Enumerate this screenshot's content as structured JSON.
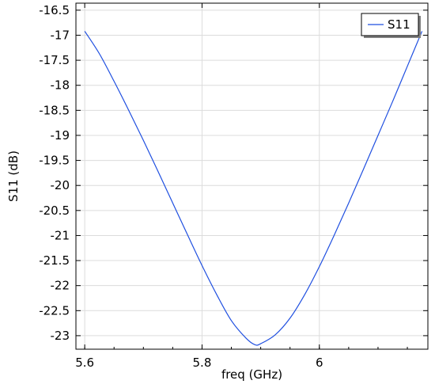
{
  "chart_data": {
    "type": "line",
    "title": "",
    "xlabel": "freq (GHz)",
    "ylabel": "S11 (dB)",
    "xlim": [
      5.585,
      6.185
    ],
    "ylim": [
      -23.27,
      -16.36
    ],
    "xticks": [
      5.6,
      5.8,
      6
    ],
    "xtick_labels": [
      "5.6",
      "5.8",
      "6"
    ],
    "yticks": [
      -16.5,
      -17,
      -17.5,
      -18,
      -18.5,
      -19,
      -19.5,
      -20,
      -20.5,
      -21,
      -21.5,
      -22,
      -22.5,
      -23
    ],
    "ytick_labels": [
      "-16.5",
      "-17",
      "-17.5",
      "-18",
      "-18.5",
      "-19",
      "-19.5",
      "-20",
      "-20.5",
      "-21",
      "-21.5",
      "-22",
      "-22.5",
      "-23"
    ],
    "grid": true,
    "legend_position": "top-right",
    "series": [
      {
        "name": "S11",
        "color": "#1f4fe0",
        "x": [
          5.6,
          5.625,
          5.65,
          5.675,
          5.7,
          5.725,
          5.75,
          5.775,
          5.8,
          5.825,
          5.85,
          5.875,
          5.89,
          5.9,
          5.925,
          5.95,
          5.975,
          6.0,
          6.025,
          6.05,
          6.075,
          6.1,
          6.125,
          6.15,
          6.175
        ],
        "y": [
          -16.92,
          -17.37,
          -17.92,
          -18.5,
          -19.1,
          -19.72,
          -20.35,
          -20.98,
          -21.6,
          -22.18,
          -22.7,
          -23.05,
          -23.18,
          -23.16,
          -22.98,
          -22.65,
          -22.18,
          -21.62,
          -21.0,
          -20.35,
          -19.68,
          -19.0,
          -18.32,
          -17.62,
          -16.92
        ]
      }
    ]
  }
}
